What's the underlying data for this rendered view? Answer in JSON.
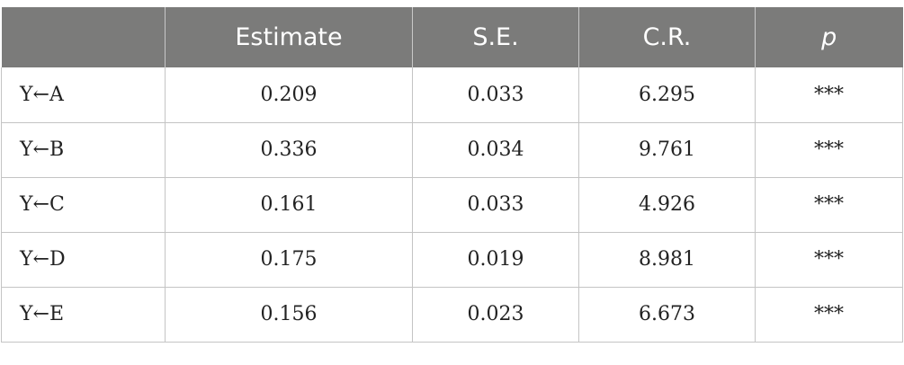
{
  "table": {
    "headers": [
      "",
      "Estimate",
      "S.E.",
      "C.R.",
      "p"
    ],
    "rows": [
      {
        "path": "Y←A",
        "estimate": "0.209",
        "se": "0.033",
        "cr": "6.295",
        "p": "***"
      },
      {
        "path": "Y←B",
        "estimate": "0.336",
        "se": "0.034",
        "cr": "9.761",
        "p": "***"
      },
      {
        "path": "Y←C",
        "estimate": "0.161",
        "se": "0.033",
        "cr": "4.926",
        "p": "***"
      },
      {
        "path": "Y←D",
        "estimate": "0.175",
        "se": "0.019",
        "cr": "8.981",
        "p": "***"
      },
      {
        "path": "Y←E",
        "estimate": "0.156",
        "se": "0.023",
        "cr": "6.673",
        "p": "***"
      }
    ]
  },
  "colors": {
    "header_background": "#7b7b7a",
    "header_text": "#ffffff",
    "grid_line": "#c4c4c4"
  }
}
